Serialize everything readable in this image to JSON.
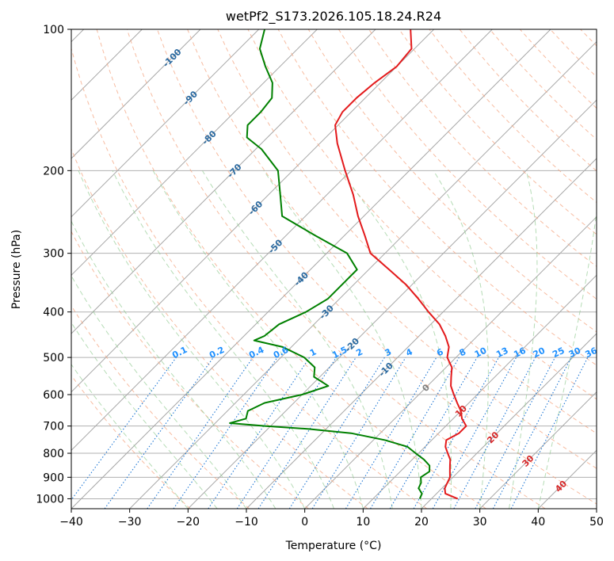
{
  "chart_data": {
    "type": "line",
    "subtype": "skew-t log-p diagram",
    "title": "wetPf2_S173.2026.105.18.24.R24",
    "xlabel": "Temperature (°C)",
    "ylabel": "Pressure (hPa)",
    "xlim": [
      -40,
      50
    ],
    "ylim": [
      1050,
      100
    ],
    "x_ticks": [
      -40,
      -30,
      -20,
      -10,
      0,
      10,
      20,
      30,
      40,
      50
    ],
    "x_tick_labels": [
      "−40",
      "−30",
      "−20",
      "−10",
      "0",
      "10",
      "20",
      "30",
      "40",
      "50"
    ],
    "y_ticks": [
      100,
      200,
      300,
      400,
      500,
      600,
      700,
      800,
      900,
      1000
    ],
    "y_tick_labels": [
      "100",
      "200",
      "300",
      "400",
      "500",
      "600",
      "700",
      "800",
      "900",
      "1000"
    ],
    "grid": true,
    "skew_isotherms": [
      -100,
      -90,
      -80,
      -70,
      -60,
      -50,
      -40,
      -30,
      -20,
      -10,
      0,
      10,
      20,
      30,
      40
    ],
    "isotherm_labels": [
      {
        "temp": -100,
        "text": "-100",
        "color": "#2b6aa0"
      },
      {
        "temp": -90,
        "text": "-90",
        "color": "#2b6aa0"
      },
      {
        "temp": -80,
        "text": "-80",
        "color": "#2b6aa0"
      },
      {
        "temp": -70,
        "text": "-70",
        "color": "#2b6aa0"
      },
      {
        "temp": -60,
        "text": "-60",
        "color": "#2b6aa0"
      },
      {
        "temp": -50,
        "text": "-50",
        "color": "#2b6aa0"
      },
      {
        "temp": -40,
        "text": "-40",
        "color": "#2b6aa0"
      },
      {
        "temp": -30,
        "text": "-30",
        "color": "#2b6aa0"
      },
      {
        "temp": -20,
        "text": "-20",
        "color": "#2b6aa0"
      },
      {
        "temp": -10,
        "text": "-10",
        "color": "#2b6aa0"
      },
      {
        "temp": 0,
        "text": "0",
        "color": "#808080"
      },
      {
        "temp": 10,
        "text": "10",
        "color": "#d62728"
      },
      {
        "temp": 20,
        "text": "20",
        "color": "#d62728"
      },
      {
        "temp": 30,
        "text": "30",
        "color": "#d62728"
      },
      {
        "temp": 40,
        "text": "40",
        "color": "#d62728"
      }
    ],
    "mixing_ratio_lines": [
      "0.1",
      "0.2",
      "0.4",
      "0.6",
      "1",
      "1.5",
      "2",
      "3",
      "4",
      "6",
      "8",
      "10",
      "13",
      "16",
      "20",
      "25",
      "30",
      "36"
    ],
    "series": [
      {
        "name": "Temperature",
        "color": "#e31a1c",
        "points": [
          {
            "p": 1000,
            "t": 24.5
          },
          {
            "p": 975,
            "t": 21.5
          },
          {
            "p": 950,
            "t": 20.5
          },
          {
            "p": 925,
            "t": 20.0
          },
          {
            "p": 900,
            "t": 19.5
          },
          {
            "p": 875,
            "t": 18.5
          },
          {
            "p": 850,
            "t": 17.5
          },
          {
            "p": 825,
            "t": 16.5
          },
          {
            "p": 800,
            "t": 15.0
          },
          {
            "p": 775,
            "t": 13.5
          },
          {
            "p": 750,
            "t": 12.5
          },
          {
            "p": 725,
            "t": 13.5
          },
          {
            "p": 700,
            "t": 13.5
          },
          {
            "p": 675,
            "t": 11.5
          },
          {
            "p": 650,
            "t": 10.0
          },
          {
            "p": 625,
            "t": 8.0
          },
          {
            "p": 600,
            "t": 6.0
          },
          {
            "p": 575,
            "t": 4.0
          },
          {
            "p": 550,
            "t": 2.5
          },
          {
            "p": 525,
            "t": 1.0
          },
          {
            "p": 500,
            "t": -1.5
          },
          {
            "p": 475,
            "t": -3.0
          },
          {
            "p": 450,
            "t": -5.5
          },
          {
            "p": 425,
            "t": -8.5
          },
          {
            "p": 400,
            "t": -12.5
          },
          {
            "p": 375,
            "t": -16.5
          },
          {
            "p": 350,
            "t": -21.0
          },
          {
            "p": 325,
            "t": -26.5
          },
          {
            "p": 300,
            "t": -32.5
          },
          {
            "p": 275,
            "t": -36.5
          },
          {
            "p": 250,
            "t": -41.0
          },
          {
            "p": 225,
            "t": -45.5
          },
          {
            "p": 200,
            "t": -51.0
          },
          {
            "p": 175,
            "t": -57.0
          },
          {
            "p": 160,
            "t": -60.5
          },
          {
            "p": 150,
            "t": -61.5
          },
          {
            "p": 140,
            "t": -61.5
          },
          {
            "p": 130,
            "t": -61.0
          },
          {
            "p": 120,
            "t": -60.0
          },
          {
            "p": 110,
            "t": -60.5
          },
          {
            "p": 100,
            "t": -64.0
          }
        ]
      },
      {
        "name": "Dewpoint",
        "color": "#008000",
        "points": [
          {
            "p": 1000,
            "t": 18.0
          },
          {
            "p": 975,
            "t": 17.5
          },
          {
            "p": 950,
            "t": 16.0
          },
          {
            "p": 925,
            "t": 15.5
          },
          {
            "p": 900,
            "t": 14.5
          },
          {
            "p": 875,
            "t": 15.0
          },
          {
            "p": 850,
            "t": 14.0
          },
          {
            "p": 825,
            "t": 12.0
          },
          {
            "p": 800,
            "t": 9.5
          },
          {
            "p": 775,
            "t": 7.0
          },
          {
            "p": 750,
            "t": 2.0
          },
          {
            "p": 725,
            "t": -5.0
          },
          {
            "p": 710,
            "t": -13.0
          },
          {
            "p": 700,
            "t": -21.0
          },
          {
            "p": 690,
            "t": -27.5
          },
          {
            "p": 675,
            "t": -25.5
          },
          {
            "p": 650,
            "t": -26.5
          },
          {
            "p": 625,
            "t": -25.0
          },
          {
            "p": 600,
            "t": -20.0
          },
          {
            "p": 575,
            "t": -17.0
          },
          {
            "p": 550,
            "t": -21.0
          },
          {
            "p": 525,
            "t": -22.5
          },
          {
            "p": 500,
            "t": -26.0
          },
          {
            "p": 475,
            "t": -31.5
          },
          {
            "p": 460,
            "t": -37.5
          },
          {
            "p": 450,
            "t": -36.5
          },
          {
            "p": 425,
            "t": -36.0
          },
          {
            "p": 400,
            "t": -33.5
          },
          {
            "p": 375,
            "t": -32.0
          },
          {
            "p": 350,
            "t": -32.0
          },
          {
            "p": 325,
            "t": -32.0
          },
          {
            "p": 300,
            "t": -36.5
          },
          {
            "p": 275,
            "t": -45.0
          },
          {
            "p": 250,
            "t": -54.0
          },
          {
            "p": 225,
            "t": -58.0
          },
          {
            "p": 200,
            "t": -62.5
          },
          {
            "p": 180,
            "t": -69.0
          },
          {
            "p": 170,
            "t": -73.5
          },
          {
            "p": 160,
            "t": -75.5
          },
          {
            "p": 150,
            "t": -75.5
          },
          {
            "p": 140,
            "t": -76.0
          },
          {
            "p": 130,
            "t": -78.5
          },
          {
            "p": 120,
            "t": -82.5
          },
          {
            "p": 110,
            "t": -86.5
          },
          {
            "p": 100,
            "t": -89.0
          }
        ]
      }
    ]
  }
}
